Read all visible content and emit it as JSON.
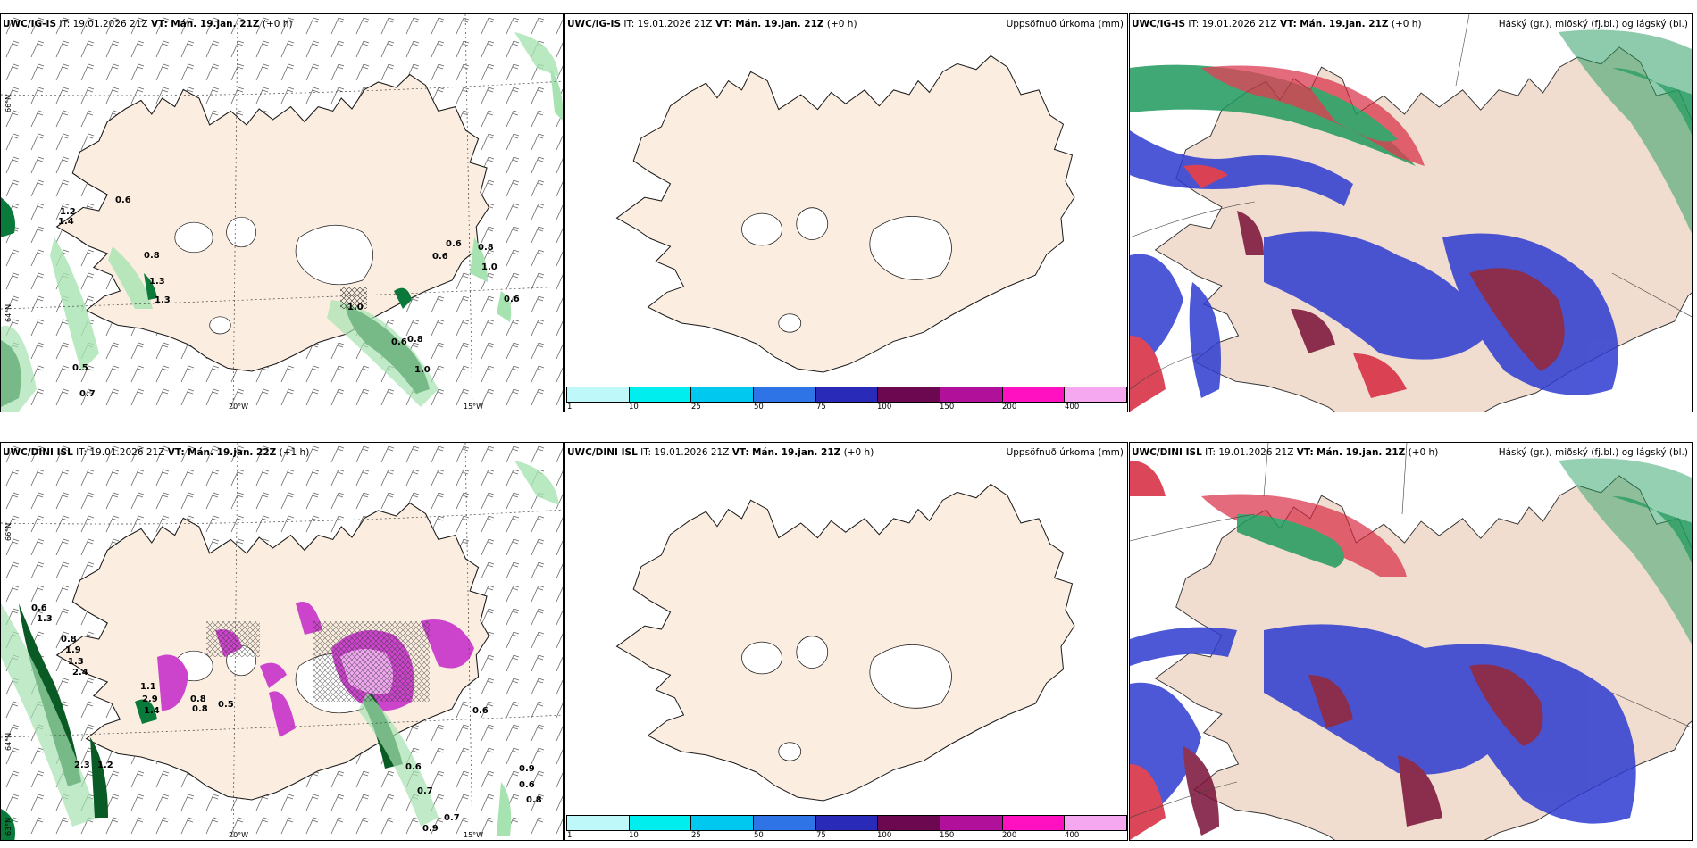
{
  "colors": {
    "land": "#fbeee0",
    "coast": "#1a1a1a",
    "precip_green_light": "#a7e3b1",
    "precip_green_dark": "#0a5a26",
    "snow_purple": "#cc44cc",
    "snow_light": "#f0a8f0",
    "cloud_high": "#d7263d",
    "cloud_mid": "#2d3bd0",
    "cloud_low": "#1f9a5c",
    "cloud_dark": "#7a1038"
  },
  "panels": {
    "p1": {
      "model": "UWC/IG-IS",
      "it_label": "IT:",
      "it": "19.01.2026 21Z",
      "vt_label": "VT:",
      "vt": "Mán. 19.jan. 21Z",
      "lead": "(+0 h)",
      "lat_labels": [
        "66°N",
        "64°N"
      ],
      "lon_labels": [
        "20°W",
        "15°W"
      ],
      "value_labels": [
        "0.6",
        "1.2",
        "1.4",
        "0.8",
        "1.3",
        "1.3",
        "0.6",
        "0.6",
        "0.8",
        "1.0",
        "1.0",
        "0.6",
        "0.6",
        "0.8",
        "1.0",
        "0.5",
        "0.7"
      ]
    },
    "p2": {
      "model": "UWC/IG-IS",
      "it_label": "IT:",
      "it": "19.01.2026 21Z",
      "vt_label": "VT:",
      "vt": "Mán. 19.jan. 21Z",
      "lead": "(+0 h)",
      "title": "Uppsöfnuð úrkoma (mm)",
      "colorbar_ticks": [
        "1",
        "10",
        "25",
        "50",
        "75",
        "100",
        "150",
        "200",
        "400"
      ],
      "colorbar_colors": [
        "#bff8f8",
        "#00eeee",
        "#00c8ee",
        "#2f74e6",
        "#2a2ab8",
        "#6b0850",
        "#b0109a",
        "#ff10c0",
        "#f5a8f0"
      ]
    },
    "p3": {
      "model": "UWC/IG-IS",
      "it_label": "IT:",
      "it": "19.01.2026 21Z",
      "vt_label": "VT:",
      "vt": "Mán. 19.jan. 21Z",
      "lead": "(+0 h)",
      "title": "Háský (gr.), miðský (fj.bl.) og lágský (bl.)"
    },
    "p4": {
      "model": "UWC/DINI ISL",
      "it_label": "IT:",
      "it": "19.01.2026 21Z",
      "vt_label": "VT:",
      "vt": "Mán. 19.jan. 22Z",
      "lead": "(+1 h)",
      "lat_labels": [
        "66°N",
        "64°N",
        "63°N"
      ],
      "lon_labels": [
        "20°W",
        "15°W"
      ],
      "value_labels": [
        "0.6",
        "1.3",
        "0.8",
        "1.9",
        "1.3",
        "2.4",
        "1.1",
        "2.9",
        "1.4",
        "0.8",
        "0.8",
        "0.5",
        "2.3",
        "1.2",
        "0.6",
        "0.7",
        "0.6",
        "0.9",
        "0.6",
        "0.8",
        "0.7",
        "0.9"
      ]
    },
    "p5": {
      "model": "UWC/DINI ISL",
      "it_label": "IT:",
      "it": "19.01.2026 21Z",
      "vt_label": "VT:",
      "vt": "Mán. 19.jan. 21Z",
      "lead": "(+0 h)",
      "title": "Uppsöfnuð úrkoma (mm)",
      "colorbar_ticks": [
        "1",
        "10",
        "25",
        "50",
        "75",
        "100",
        "150",
        "200",
        "400"
      ],
      "colorbar_colors": [
        "#bff8f8",
        "#00eeee",
        "#00c8ee",
        "#2f74e6",
        "#2a2ab8",
        "#6b0850",
        "#b0109a",
        "#ff10c0",
        "#f5a8f0"
      ]
    },
    "p6": {
      "model": "UWC/DINI ISL",
      "it_label": "IT:",
      "it": "19.01.2026 21Z",
      "vt_label": "VT:",
      "vt": "Mán. 19.jan. 21Z",
      "lead": "(+0 h)",
      "title": "Háský (gr.), miðský (fj.bl.) og lágský (bl.)"
    }
  }
}
